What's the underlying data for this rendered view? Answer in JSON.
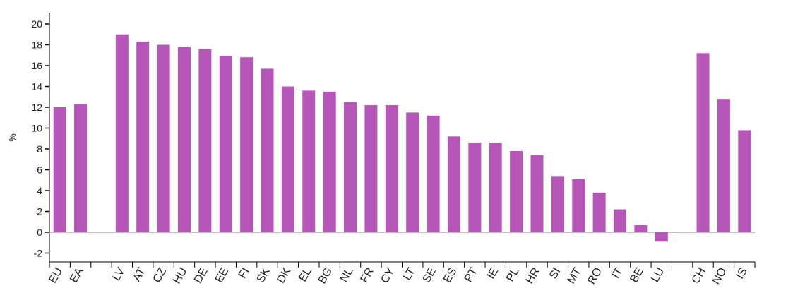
{
  "chart_data": {
    "type": "bar",
    "title": "",
    "xlabel": "",
    "ylabel": "%",
    "ylim": [
      -3,
      21
    ],
    "yticks": [
      -2,
      0,
      2,
      4,
      6,
      8,
      10,
      12,
      14,
      16,
      18,
      20
    ],
    "grid": false,
    "legend": null,
    "bar_color": "#B556B8",
    "zero_line_color": "#AAAAAA",
    "categories": [
      "EU",
      "EA",
      "",
      "LV",
      "AT",
      "CZ",
      "HU",
      "DE",
      "EE",
      "FI",
      "SK",
      "DK",
      "EL",
      "BG",
      "NL",
      "FR",
      "CY",
      "LT",
      "SE",
      "ES",
      "PT",
      "IE",
      "PL",
      "HR",
      "SI",
      "MT",
      "RO",
      "IT",
      "BE",
      "LU",
      "",
      "CH",
      "NO",
      "IS"
    ],
    "values": [
      12.0,
      12.3,
      null,
      19.0,
      18.3,
      18.0,
      17.8,
      17.6,
      16.9,
      16.8,
      15.7,
      14.0,
      13.6,
      13.5,
      12.5,
      12.2,
      12.2,
      11.5,
      11.2,
      9.2,
      8.6,
      8.6,
      7.8,
      7.4,
      5.4,
      5.1,
      3.8,
      2.2,
      0.7,
      -0.9,
      null,
      17.2,
      12.8,
      9.8
    ]
  }
}
